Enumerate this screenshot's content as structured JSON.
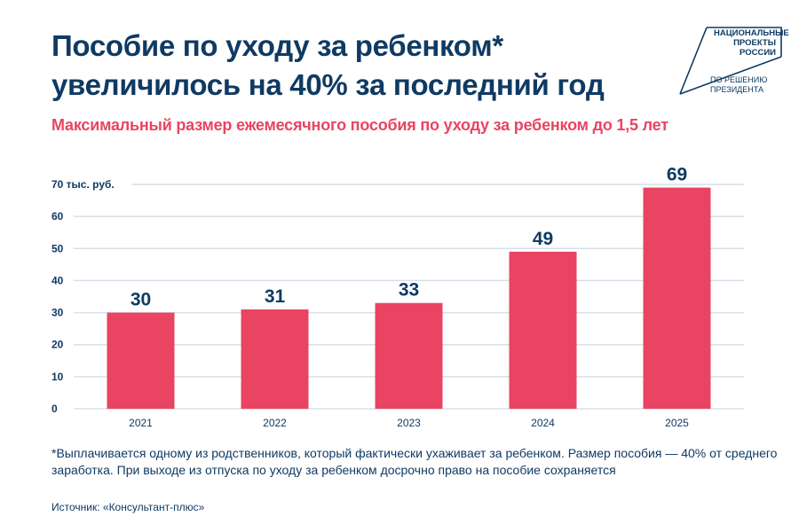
{
  "header": {
    "title_line1": "Пособие по уходу за ребенком*",
    "title_line2": "увеличилось на 40% за последний год",
    "subtitle": "Максимальный размер ежемесячного пособия по уходу за ребенком до 1,5 лет"
  },
  "logo": {
    "line1": "НАЦИОНАЛЬНЫЕ",
    "line2": "ПРОЕКТЫ",
    "line3": "РОССИИ",
    "line4": "ПО РЕШЕНИЮ",
    "line5": "ПРЕЗИДЕНТА"
  },
  "colors": {
    "bar": "#e94462",
    "text": "#0f3a63",
    "grid": "#d6e0ea",
    "accent": "#e94462"
  },
  "chart_data": {
    "type": "bar",
    "title": "Максимальный размер ежемесячного пособия по уходу за ребенком до 1,5 лет",
    "xlabel": "",
    "ylabel": "тыс. руб.",
    "categories": [
      "2021",
      "2022",
      "2023",
      "2024",
      "2025"
    ],
    "values": [
      30,
      31,
      33,
      49,
      69
    ],
    "data_labels": [
      "30",
      "31",
      "33",
      "49",
      "69"
    ],
    "ylim": [
      0,
      70
    ],
    "yticks": [
      0,
      10,
      20,
      30,
      40,
      50,
      60,
      70
    ],
    "ytick_labels": [
      "0",
      "10",
      "20",
      "30",
      "40",
      "50",
      "60",
      "70 тыс. руб."
    ],
    "grid": true,
    "legend": "none"
  },
  "footnote": "*Выплачивается одному из родственников, который фактически ухаживает за ребенком. Размер пособия — 40% от среднего заработка. При выходе из отпуска по уходу за ребенком досрочно право на пособие сохраняется",
  "source": "Источник: «Консультант-плюс»"
}
